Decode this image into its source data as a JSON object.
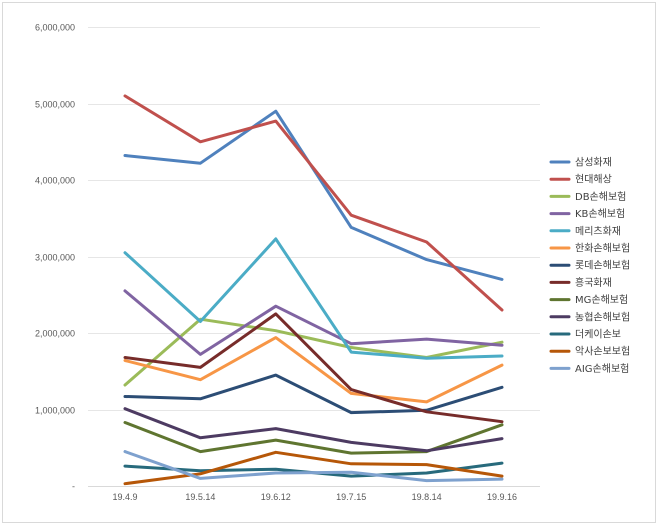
{
  "chart_data": {
    "type": "line",
    "title": "",
    "xlabel": "",
    "ylabel": "",
    "ylim": [
      0,
      6000000
    ],
    "yticks": [
      {
        "value": 0,
        "label": "-"
      },
      {
        "value": 1000000,
        "label": "1,000,000"
      },
      {
        "value": 2000000,
        "label": "2,000,000"
      },
      {
        "value": 3000000,
        "label": "3,000,000"
      },
      {
        "value": 4000000,
        "label": "4,000,000"
      },
      {
        "value": 5000000,
        "label": "5,000,000"
      },
      {
        "value": 6000000,
        "label": "6,000,000"
      }
    ],
    "categories": [
      "19.4.9",
      "19.5.14",
      "19.6.12",
      "19.7.15",
      "19.8.14",
      "19.9.16"
    ],
    "legend_position": "right",
    "series": [
      {
        "name": "삼성화재",
        "color": "#4F81BD",
        "values": [
          4320000,
          4220000,
          4900000,
          3380000,
          2960000,
          2700000
        ]
      },
      {
        "name": "현대해상",
        "color": "#C0504D",
        "values": [
          5100000,
          4500000,
          4770000,
          3540000,
          3190000,
          2300000
        ]
      },
      {
        "name": "DB손해보험",
        "color": "#9BBB59",
        "values": [
          1320000,
          2180000,
          2030000,
          1810000,
          1680000,
          1880000
        ]
      },
      {
        "name": "KB손해보험",
        "color": "#8064A2",
        "values": [
          2550000,
          1720000,
          2350000,
          1860000,
          1920000,
          1840000
        ]
      },
      {
        "name": "메리츠화재",
        "color": "#4BACC6",
        "values": [
          3050000,
          2150000,
          3230000,
          1750000,
          1670000,
          1700000
        ]
      },
      {
        "name": "한화손해보험",
        "color": "#F79646",
        "values": [
          1640000,
          1390000,
          1940000,
          1210000,
          1100000,
          1580000
        ]
      },
      {
        "name": "롯데손해보험",
        "color": "#2C4D75",
        "values": [
          1170000,
          1140000,
          1450000,
          960000,
          990000,
          1290000
        ]
      },
      {
        "name": "흥국화재",
        "color": "#772C2A",
        "values": [
          1680000,
          1550000,
          2250000,
          1260000,
          970000,
          840000
        ]
      },
      {
        "name": "MG손해보험",
        "color": "#5F7530",
        "values": [
          830000,
          450000,
          600000,
          430000,
          450000,
          800000
        ]
      },
      {
        "name": "농협손해보험",
        "color": "#4D3B62",
        "values": [
          1010000,
          630000,
          750000,
          570000,
          460000,
          620000
        ]
      },
      {
        "name": "더케이손보",
        "color": "#276A7C",
        "values": [
          260000,
          200000,
          220000,
          130000,
          170000,
          300000
        ]
      },
      {
        "name": "악사손보보험",
        "color": "#B65708",
        "values": [
          30000,
          160000,
          440000,
          290000,
          280000,
          130000
        ]
      },
      {
        "name": "AIG손해보험",
        "color": "#7EA1CE",
        "values": [
          450000,
          100000,
          170000,
          180000,
          70000,
          90000
        ]
      }
    ]
  }
}
